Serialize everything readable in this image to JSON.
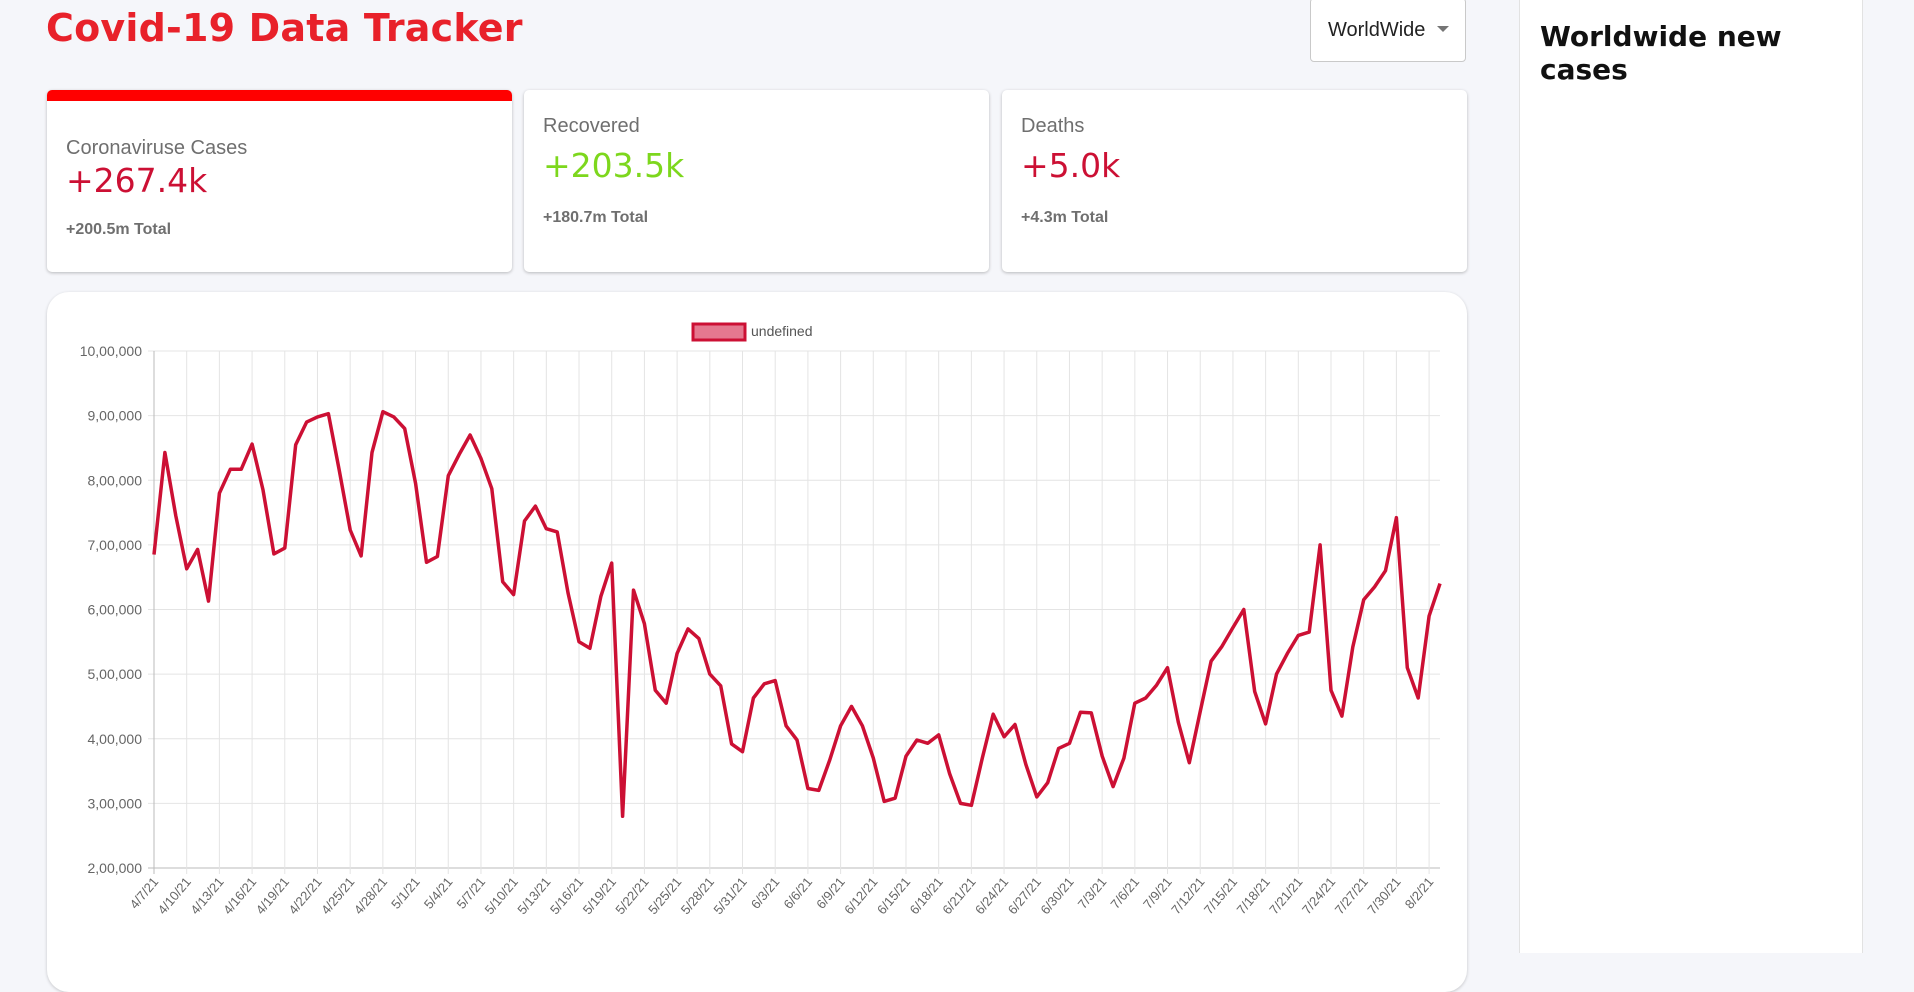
{
  "header": {
    "title": "Covid-19 Data Tracker"
  },
  "country_select": {
    "selected": "WorldWide"
  },
  "cards": [
    {
      "title": "Coronaviruse Cases",
      "value": "+267.4k",
      "total": "+200.5m Total",
      "selected": true,
      "value_color": "#cc1034"
    },
    {
      "title": "Recovered",
      "value": "+203.5k",
      "total": "+180.7m Total",
      "selected": false,
      "value_color": "#7dd71d"
    },
    {
      "title": "Deaths",
      "value": "+5.0k",
      "total": "+4.3m Total",
      "selected": false,
      "value_color": "#cc1034"
    }
  ],
  "sidebar": {
    "title": "Worldwide new cases"
  },
  "colors": {
    "accent": "#e8212a",
    "line": "#cc1034",
    "legend_fill": "#e5788f"
  },
  "chart_data": {
    "type": "line",
    "legend": [
      "undefined"
    ],
    "legend_position": "top",
    "grid": true,
    "ylim": [
      200000,
      1000000
    ],
    "y_ticks": [
      200000,
      300000,
      400000,
      500000,
      600000,
      700000,
      800000,
      900000,
      1000000
    ],
    "y_tick_labels": [
      "2,00,000",
      "3,00,000",
      "4,00,000",
      "5,00,000",
      "6,00,000",
      "7,00,000",
      "8,00,000",
      "9,00,000",
      "10,00,000"
    ],
    "x_tick_labels": [
      "4/7/21",
      "4/10/21",
      "4/13/21",
      "4/16/21",
      "4/19/21",
      "4/22/21",
      "4/25/21",
      "4/28/21",
      "5/1/21",
      "5/4/21",
      "5/7/21",
      "5/10/21",
      "5/13/21",
      "5/16/21",
      "5/19/21",
      "5/22/21",
      "5/25/21",
      "5/28/21",
      "5/31/21",
      "6/3/21",
      "6/6/21",
      "6/9/21",
      "6/12/21",
      "6/15/21",
      "6/18/21",
      "6/21/21",
      "6/24/21",
      "6/27/21",
      "6/30/21",
      "7/3/21",
      "7/6/21",
      "7/9/21",
      "7/12/21",
      "7/15/21",
      "7/18/21",
      "7/21/21",
      "7/24/21",
      "7/27/21",
      "7/30/21",
      "8/2/21"
    ],
    "series": [
      {
        "name": "undefined",
        "values": [
          685000,
          843000,
          745000,
          663000,
          693000,
          613000,
          780000,
          817000,
          817000,
          856000,
          785000,
          686000,
          695000,
          855000,
          890000,
          898000,
          903000,
          815000,
          723000,
          683000,
          843000,
          906000,
          898000,
          880000,
          795000,
          673000,
          682000,
          807000,
          840000,
          870000,
          834000,
          787000,
          643000,
          623000,
          737000,
          760000,
          725000,
          720000,
          625000,
          550000,
          540000,
          620000,
          672000,
          280000,
          630000,
          578000,
          475000,
          455000,
          532000,
          570000,
          555000,
          500000,
          482000,
          392000,
          380000,
          463000,
          485000,
          490000,
          420000,
          398000,
          323000,
          320000,
          367000,
          420000,
          450000,
          420000,
          370000,
          303000,
          308000,
          373000,
          398000,
          393000,
          406000,
          346000,
          300000,
          297000,
          370000,
          438000,
          403000,
          422000,
          360000,
          310000,
          332000,
          385000,
          393000,
          441000,
          440000,
          373000,
          326000,
          370000,
          455000,
          463000,
          483000,
          510000,
          425000,
          363000,
          442000,
          520000,
          543000,
          572000,
          600000,
          473000,
          423000,
          500000,
          532000,
          560000,
          565000,
          700000,
          475000,
          435000,
          542000,
          615000,
          635000,
          660000,
          742000,
          510000,
          463000,
          590000,
          640000
        ]
      }
    ]
  }
}
